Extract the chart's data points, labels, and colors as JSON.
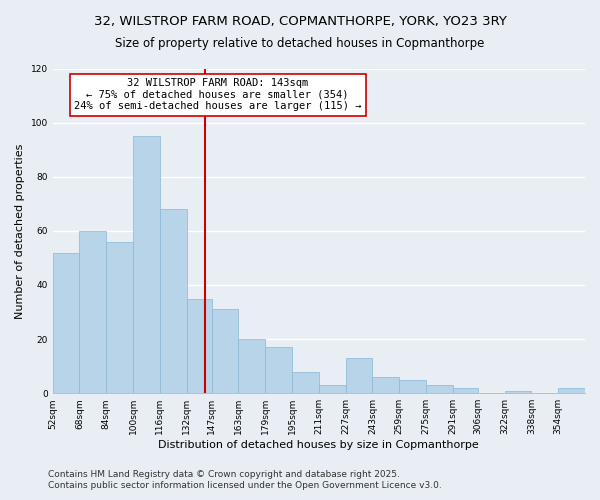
{
  "title": "32, WILSTROP FARM ROAD, COPMANTHORPE, YORK, YO23 3RY",
  "subtitle": "Size of property relative to detached houses in Copmanthorpe",
  "xlabel": "Distribution of detached houses by size in Copmanthorpe",
  "ylabel": "Number of detached properties",
  "bar_color": "#b8d4e8",
  "bar_edge_color": "#8ab8d4",
  "background_color": "#e8eef4",
  "plot_bg_color": "#e8eef4",
  "grid_color": "#ffffff",
  "vline_color": "#cc0000",
  "annotation_line1": "32 WILSTROP FARM ROAD: 143sqm",
  "annotation_line2": "← 75% of detached houses are smaller (354)",
  "annotation_line3": "24% of semi-detached houses are larger (115) →",
  "annotation_box_color": "white",
  "annotation_box_edge": "#cc0000",
  "bins": [
    52,
    68,
    84,
    100,
    116,
    132,
    147,
    163,
    179,
    195,
    211,
    227,
    243,
    259,
    275,
    291,
    306,
    322,
    338,
    354,
    370
  ],
  "counts": [
    52,
    60,
    56,
    95,
    68,
    35,
    31,
    20,
    17,
    8,
    3,
    13,
    6,
    5,
    3,
    2,
    0,
    1,
    0,
    2
  ],
  "vline_x": 143,
  "ylim": [
    0,
    120
  ],
  "yticks": [
    0,
    20,
    40,
    60,
    80,
    100,
    120
  ],
  "footer_line1": "Contains HM Land Registry data © Crown copyright and database right 2025.",
  "footer_line2": "Contains public sector information licensed under the Open Government Licence v3.0.",
  "title_fontsize": 9.5,
  "subtitle_fontsize": 8.5,
  "axis_label_fontsize": 8,
  "tick_fontsize": 6.5,
  "footer_fontsize": 6.5,
  "annotation_fontsize": 7.5
}
